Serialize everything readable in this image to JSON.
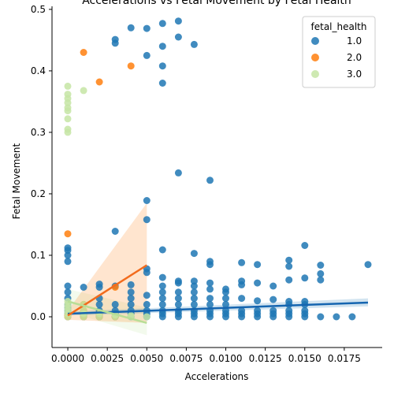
{
  "chart_data": {
    "type": "scatter",
    "title": "Accelerations vs Fetal Movement by Fetal Health",
    "xlabel": "Accelerations",
    "ylabel": "Fetal Movement",
    "xlim": [
      -0.001,
      0.0199
    ],
    "ylim": [
      -0.05,
      0.505
    ],
    "xticks": [
      0.0,
      0.0025,
      0.005,
      0.0075,
      0.01,
      0.0125,
      0.015,
      0.0175
    ],
    "xtick_labels": [
      "0.0000",
      "0.0025",
      "0.0050",
      "0.0075",
      "0.0100",
      "0.0125",
      "0.0150",
      "0.0175"
    ],
    "yticks": [
      0.0,
      0.1,
      0.2,
      0.3,
      0.4,
      0.5
    ],
    "ytick_labels": [
      "0.0",
      "0.1",
      "0.2",
      "0.3",
      "0.4",
      "0.5"
    ],
    "grid": false,
    "legend": {
      "title": "fetal_health",
      "placement": "top-right"
    },
    "series": [
      {
        "name": "1.0",
        "color": "#1f77b4",
        "points": [
          [
            0.0,
            0.0
          ],
          [
            0.0,
            0.005
          ],
          [
            0.0,
            0.01
          ],
          [
            0.0,
            0.015
          ],
          [
            0.0,
            0.02
          ],
          [
            0.0,
            0.03
          ],
          [
            0.0,
            0.04
          ],
          [
            0.0,
            0.05
          ],
          [
            0.0,
            0.09
          ],
          [
            0.0,
            0.1
          ],
          [
            0.0,
            0.108
          ],
          [
            0.0,
            0.112
          ],
          [
            0.001,
            0.0
          ],
          [
            0.001,
            0.005
          ],
          [
            0.001,
            0.048
          ],
          [
            0.002,
            0.0
          ],
          [
            0.002,
            0.005
          ],
          [
            0.002,
            0.01
          ],
          [
            0.002,
            0.02
          ],
          [
            0.002,
            0.03
          ],
          [
            0.002,
            0.048
          ],
          [
            0.002,
            0.053
          ],
          [
            0.003,
            0.0
          ],
          [
            0.003,
            0.005
          ],
          [
            0.003,
            0.01
          ],
          [
            0.003,
            0.02
          ],
          [
            0.003,
            0.05
          ],
          [
            0.003,
            0.139
          ],
          [
            0.003,
            0.445
          ],
          [
            0.003,
            0.451
          ],
          [
            0.004,
            0.0
          ],
          [
            0.004,
            0.005
          ],
          [
            0.004,
            0.01
          ],
          [
            0.004,
            0.02
          ],
          [
            0.004,
            0.03
          ],
          [
            0.004,
            0.04
          ],
          [
            0.004,
            0.052
          ],
          [
            0.004,
            0.47
          ],
          [
            0.005,
            0.0
          ],
          [
            0.005,
            0.005
          ],
          [
            0.005,
            0.01
          ],
          [
            0.005,
            0.02
          ],
          [
            0.005,
            0.035
          ],
          [
            0.005,
            0.072
          ],
          [
            0.005,
            0.078
          ],
          [
            0.005,
            0.158
          ],
          [
            0.005,
            0.189
          ],
          [
            0.005,
            0.425
          ],
          [
            0.005,
            0.469
          ],
          [
            0.006,
            0.0
          ],
          [
            0.006,
            0.005
          ],
          [
            0.006,
            0.01
          ],
          [
            0.006,
            0.02
          ],
          [
            0.006,
            0.03
          ],
          [
            0.006,
            0.04
          ],
          [
            0.006,
            0.05
          ],
          [
            0.006,
            0.064
          ],
          [
            0.006,
            0.109
          ],
          [
            0.006,
            0.38
          ],
          [
            0.006,
            0.408
          ],
          [
            0.006,
            0.44
          ],
          [
            0.006,
            0.477
          ],
          [
            0.007,
            0.0
          ],
          [
            0.007,
            0.005
          ],
          [
            0.007,
            0.01
          ],
          [
            0.007,
            0.02
          ],
          [
            0.007,
            0.03
          ],
          [
            0.007,
            0.04
          ],
          [
            0.007,
            0.055
          ],
          [
            0.007,
            0.058
          ],
          [
            0.007,
            0.234
          ],
          [
            0.007,
            0.455
          ],
          [
            0.007,
            0.481
          ],
          [
            0.008,
            0.0
          ],
          [
            0.008,
            0.005
          ],
          [
            0.008,
            0.01
          ],
          [
            0.008,
            0.02
          ],
          [
            0.008,
            0.03
          ],
          [
            0.008,
            0.04
          ],
          [
            0.008,
            0.05
          ],
          [
            0.008,
            0.058
          ],
          [
            0.008,
            0.103
          ],
          [
            0.008,
            0.443
          ],
          [
            0.009,
            0.0
          ],
          [
            0.009,
            0.005
          ],
          [
            0.009,
            0.01
          ],
          [
            0.009,
            0.02
          ],
          [
            0.009,
            0.03
          ],
          [
            0.009,
            0.045
          ],
          [
            0.009,
            0.055
          ],
          [
            0.009,
            0.085
          ],
          [
            0.009,
            0.09
          ],
          [
            0.009,
            0.222
          ],
          [
            0.01,
            0.0
          ],
          [
            0.01,
            0.005
          ],
          [
            0.01,
            0.01
          ],
          [
            0.01,
            0.02
          ],
          [
            0.01,
            0.03
          ],
          [
            0.01,
            0.04
          ],
          [
            0.01,
            0.045
          ],
          [
            0.011,
            0.0
          ],
          [
            0.011,
            0.005
          ],
          [
            0.011,
            0.01
          ],
          [
            0.011,
            0.03
          ],
          [
            0.011,
            0.052
          ],
          [
            0.011,
            0.058
          ],
          [
            0.011,
            0.088
          ],
          [
            0.012,
            0.0
          ],
          [
            0.012,
            0.005
          ],
          [
            0.012,
            0.01
          ],
          [
            0.012,
            0.026
          ],
          [
            0.012,
            0.055
          ],
          [
            0.012,
            0.085
          ],
          [
            0.013,
            0.0
          ],
          [
            0.013,
            0.005
          ],
          [
            0.013,
            0.01
          ],
          [
            0.013,
            0.028
          ],
          [
            0.013,
            0.05
          ],
          [
            0.014,
            0.0
          ],
          [
            0.014,
            0.005
          ],
          [
            0.014,
            0.01
          ],
          [
            0.014,
            0.02
          ],
          [
            0.014,
            0.025
          ],
          [
            0.014,
            0.06
          ],
          [
            0.014,
            0.082
          ],
          [
            0.014,
            0.092
          ],
          [
            0.015,
            0.0
          ],
          [
            0.015,
            0.005
          ],
          [
            0.015,
            0.01
          ],
          [
            0.015,
            0.02
          ],
          [
            0.015,
            0.025
          ],
          [
            0.015,
            0.063
          ],
          [
            0.015,
            0.116
          ],
          [
            0.016,
            0.0
          ],
          [
            0.016,
            0.06
          ],
          [
            0.016,
            0.07
          ],
          [
            0.016,
            0.084
          ],
          [
            0.017,
            0.0
          ],
          [
            0.018,
            0.0
          ],
          [
            0.019,
            0.085
          ]
        ],
        "regression": {
          "x": [
            0.0,
            0.019
          ],
          "y": [
            0.005,
            0.023
          ]
        }
      },
      {
        "name": "2.0",
        "color": "#ff7f0e",
        "points": [
          [
            0.0,
            0.0
          ],
          [
            0.0,
            0.002
          ],
          [
            0.0,
            0.135
          ],
          [
            0.001,
            0.0
          ],
          [
            0.001,
            0.01
          ],
          [
            0.001,
            0.02
          ],
          [
            0.001,
            0.43
          ],
          [
            0.002,
            0.0
          ],
          [
            0.002,
            0.005
          ],
          [
            0.002,
            0.382
          ],
          [
            0.003,
            0.0
          ],
          [
            0.003,
            0.048
          ],
          [
            0.004,
            0.408
          ]
        ],
        "regression": {
          "x": [
            0.0,
            0.005
          ],
          "y": [
            0.002,
            0.084
          ]
        }
      },
      {
        "name": "3.0",
        "color": "#c5e5a5",
        "points": [
          [
            0.0,
            0.0
          ],
          [
            0.0,
            0.005
          ],
          [
            0.0,
            0.01
          ],
          [
            0.0,
            0.015
          ],
          [
            0.0,
            0.02
          ],
          [
            0.0,
            0.025
          ],
          [
            0.0,
            0.3
          ],
          [
            0.0,
            0.305
          ],
          [
            0.0,
            0.322
          ],
          [
            0.0,
            0.335
          ],
          [
            0.0,
            0.34
          ],
          [
            0.0,
            0.348
          ],
          [
            0.0,
            0.355
          ],
          [
            0.0,
            0.362
          ],
          [
            0.0,
            0.375
          ],
          [
            0.001,
            0.0
          ],
          [
            0.001,
            0.005
          ],
          [
            0.001,
            0.01
          ],
          [
            0.001,
            0.02
          ],
          [
            0.001,
            0.368
          ],
          [
            0.002,
            0.0
          ],
          [
            0.002,
            0.005
          ],
          [
            0.003,
            0.0
          ],
          [
            0.003,
            0.003
          ],
          [
            0.004,
            0.0
          ],
          [
            0.004,
            0.002
          ],
          [
            0.005,
            0.0
          ]
        ],
        "regression": {
          "x": [
            0.0,
            0.005
          ],
          "y": [
            0.025,
            -0.01
          ]
        }
      }
    ]
  }
}
